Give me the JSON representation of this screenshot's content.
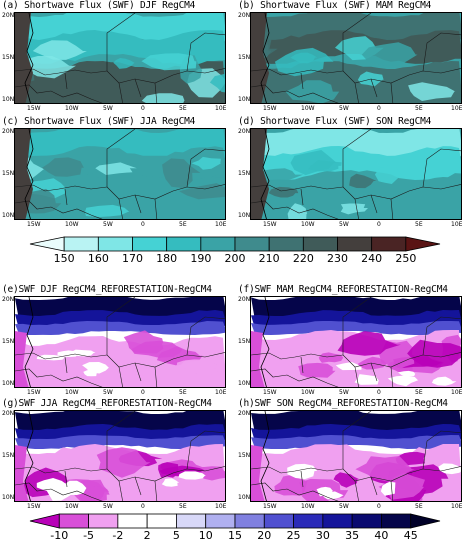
{
  "panels_top": [
    {
      "id": "a",
      "title": "(a) Shortwave Flux (SWF) DJF RegCM4"
    },
    {
      "id": "b",
      "title": "(b) Shortwave Flux (SWF) MAM RegCM4"
    },
    {
      "id": "c",
      "title": "(c) Shortwave Flux (SWF) JJA RegCM4"
    },
    {
      "id": "d",
      "title": "(d) Shortwave Flux (SWF) SON RegCM4"
    }
  ],
  "panels_bottom": [
    {
      "id": "e",
      "title": "(e)SWF DJF RegCM4_REFORESTATION-RegCM4"
    },
    {
      "id": "f",
      "title": "(f)SWF MAM RegCM4_REFORESTATION-RegCM4"
    },
    {
      "id": "g",
      "title": "(g)SWF JJA RegCM4_REFORESTATION-RegCM4"
    },
    {
      "id": "h",
      "title": "(h)SWF SON RegCM4_REFORESTATION-RegCM4"
    }
  ],
  "axes": {
    "y_ticks": [
      "20N",
      "15N",
      "10N"
    ],
    "x_ticks": [
      "15W",
      "10W",
      "5W",
      "0",
      "5E",
      "10E"
    ]
  },
  "chart_data": [
    {
      "type": "heatmap",
      "name_ref": "top-colorbar",
      "levels": [
        150,
        160,
        170,
        180,
        190,
        200,
        210,
        220,
        230,
        240,
        250
      ],
      "level_labels": [
        "150",
        "160",
        "170",
        "180",
        "190",
        "200",
        "210",
        "220",
        "230",
        "240",
        "250"
      ],
      "colors": [
        "#eafcfc",
        "#b9f3f3",
        "#7fe6e6",
        "#45d2d4",
        "#35bcbf",
        "#3aa3a6",
        "#3f8b8d",
        "#3f7272",
        "#405b59",
        "#443f3d",
        "#4a2424",
        "#5a1414"
      ],
      "panels": [
        "a",
        "b",
        "c",
        "d"
      ],
      "xlim": [
        "18W",
        "10E"
      ],
      "ylim": [
        "10N",
        "20N"
      ]
    },
    {
      "type": "heatmap",
      "name_ref": "bottom-colorbar",
      "levels": [
        -10,
        -5,
        -2,
        2,
        5,
        10,
        15,
        20,
        25,
        30,
        35,
        40,
        45
      ],
      "level_labels": [
        "-10",
        "-5",
        "-2",
        "2",
        "5",
        "10",
        "15",
        "20",
        "25",
        "30",
        "35",
        "40",
        "45"
      ],
      "colors": [
        "#b800b8",
        "#d84fd8",
        "#f0a0f0",
        "#ffffff",
        "#ffffff",
        "#d8d8f8",
        "#b0b0f0",
        "#8080e0",
        "#5050d0",
        "#2a2ab8",
        "#14149a",
        "#0a0a70",
        "#05054a",
        "#000028"
      ],
      "panels": [
        "e",
        "f",
        "g",
        "h"
      ],
      "xlim": [
        "18W",
        "10E"
      ],
      "ylim": [
        "10N",
        "20N"
      ]
    }
  ]
}
